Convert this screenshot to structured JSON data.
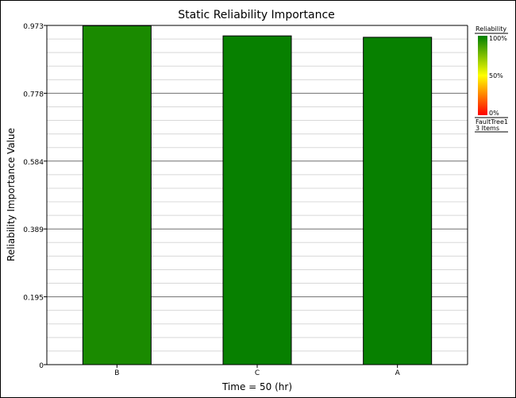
{
  "chart_data": {
    "type": "bar",
    "title": "Static Reliability Importance",
    "xlabel": "Time = 50 (hr)",
    "ylabel": "Reliability Importance Value",
    "categories": [
      "B",
      "C",
      "A"
    ],
    "values": [
      0.972,
      0.943,
      0.939
    ],
    "bar_colors": [
      "#1a8a00",
      "#078000",
      "#078000"
    ],
    "ylim": [
      0,
      0.973
    ],
    "yticks": [
      "0",
      "0.195",
      "0.389",
      "0.584",
      "0.778",
      "0.973"
    ],
    "grid": true,
    "legend": {
      "title": "Reliability",
      "scale_labels": [
        "100%",
        "50%",
        "0%"
      ],
      "colors": [
        "#008000",
        "#ffff00",
        "#ff0000"
      ],
      "source": "FaultTree1",
      "count": "3 Items",
      "placement": "right"
    }
  }
}
